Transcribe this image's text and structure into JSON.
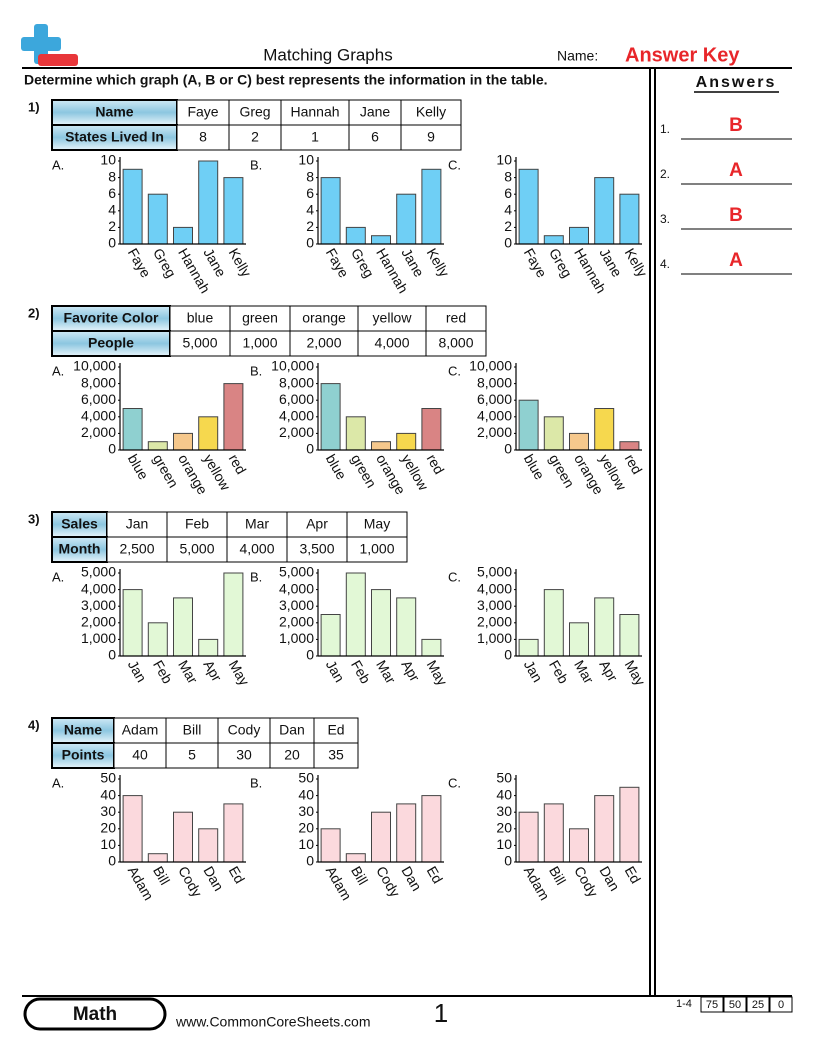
{
  "header": {
    "title": "Matching Graphs",
    "name_label": "Name:",
    "answer_key": "Answer Key"
  },
  "instructions": "Determine which graph (A, B or C) best represents the information in the table.",
  "problems": [
    {
      "number": "1)",
      "table": {
        "rows": [
          [
            "Name",
            "Faye",
            "Greg",
            "Hannah",
            "Jane",
            "Kelly"
          ],
          [
            "States Lived In",
            "8",
            "2",
            "1",
            "6",
            "9"
          ]
        ]
      },
      "ylim": [
        0,
        10
      ],
      "yticks": [
        0,
        2,
        4,
        6,
        8,
        10
      ],
      "bar_colors": [
        "#6fcff5",
        "#6fcff5",
        "#6fcff5",
        "#6fcff5",
        "#6fcff5"
      ],
      "graphs": [
        {
          "label": "A.",
          "type": "bar",
          "values": [
            9,
            6,
            2,
            10,
            8
          ]
        },
        {
          "label": "B.",
          "type": "bar",
          "values": [
            8,
            2,
            1,
            6,
            9
          ]
        },
        {
          "label": "C.",
          "type": "bar",
          "values": [
            9,
            1,
            2,
            8,
            6
          ]
        }
      ]
    },
    {
      "number": "2)",
      "table": {
        "rows": [
          [
            "Favorite Color",
            "blue",
            "green",
            "orange",
            "yellow",
            "red"
          ],
          [
            "People",
            "5,000",
            "1,000",
            "2,000",
            "4,000",
            "8,000"
          ]
        ]
      },
      "ylim": [
        0,
        10000
      ],
      "yticks": [
        0,
        {
          "value": 2000,
          "label": "2,000"
        },
        {
          "value": 4000,
          "label": "4,000"
        },
        {
          "value": 6000,
          "label": "6,000"
        },
        {
          "value": 8000,
          "label": "8,000"
        },
        {
          "value": 10000,
          "label": "10,000"
        }
      ],
      "bar_colors": [
        "#8fd0d0",
        "#dce8a8",
        "#f6c88c",
        "#f6d84e",
        "#d98484"
      ],
      "graphs": [
        {
          "label": "A.",
          "type": "bar",
          "values": [
            5000,
            1000,
            2000,
            4000,
            8000
          ]
        },
        {
          "label": "B.",
          "type": "bar",
          "values": [
            8000,
            4000,
            1000,
            2000,
            5000
          ]
        },
        {
          "label": "C.",
          "type": "bar",
          "values": [
            6000,
            4000,
            2000,
            5000,
            1000
          ]
        }
      ]
    },
    {
      "number": "3)",
      "table": {
        "rows": [
          [
            "Sales",
            "Jan",
            "Feb",
            "Mar",
            "Apr",
            "May"
          ],
          [
            "Month",
            "2,500",
            "5,000",
            "4,000",
            "3,500",
            "1,000"
          ]
        ]
      },
      "ylim": [
        0,
        5000
      ],
      "yticks": [
        0,
        {
          "value": 1000,
          "label": "1,000"
        },
        {
          "value": 2000,
          "label": "2,000"
        },
        {
          "value": 3000,
          "label": "3,000"
        },
        {
          "value": 4000,
          "label": "4,000"
        },
        {
          "value": 5000,
          "label": "5,000"
        }
      ],
      "bar_colors": [
        "#e2f8d6",
        "#e2f8d6",
        "#e2f8d6",
        "#e2f8d6",
        "#e2f8d6"
      ],
      "graphs": [
        {
          "label": "A.",
          "type": "bar",
          "values": [
            4000,
            2000,
            3500,
            1000,
            5000
          ]
        },
        {
          "label": "B.",
          "type": "bar",
          "values": [
            2500,
            5000,
            4000,
            3500,
            1000
          ]
        },
        {
          "label": "C.",
          "type": "bar",
          "values": [
            1000,
            4000,
            2000,
            3500,
            2500
          ]
        }
      ]
    },
    {
      "number": "4)",
      "table": {
        "rows": [
          [
            "Name",
            "Adam",
            "Bill",
            "Cody",
            "Dan",
            "Ed"
          ],
          [
            "Points",
            "40",
            "5",
            "30",
            "20",
            "35"
          ]
        ]
      },
      "ylim": [
        0,
        50
      ],
      "yticks": [
        0,
        10,
        20,
        30,
        40,
        50
      ],
      "bar_colors": [
        "#fbd9dd",
        "#fbd9dd",
        "#fbd9dd",
        "#fbd9dd",
        "#fbd9dd"
      ],
      "graphs": [
        {
          "label": "A.",
          "type": "bar",
          "values": [
            40,
            5,
            30,
            20,
            35
          ]
        },
        {
          "label": "B.",
          "type": "bar",
          "values": [
            20,
            5,
            30,
            35,
            40
          ]
        },
        {
          "label": "C.",
          "type": "bar",
          "values": [
            30,
            35,
            20,
            40,
            45
          ]
        }
      ]
    }
  ],
  "answers": {
    "title": "Answers",
    "items": [
      {
        "number": "1.",
        "answer": "B"
      },
      {
        "number": "2.",
        "answer": "A"
      },
      {
        "number": "3.",
        "answer": "B"
      },
      {
        "number": "4.",
        "answer": "A"
      }
    ]
  },
  "footer": {
    "subject": "Math",
    "website": "www.CommonCoreSheets.com",
    "page": "1",
    "score_label": "1-4",
    "scores": [
      "75",
      "50",
      "25",
      "0"
    ]
  }
}
